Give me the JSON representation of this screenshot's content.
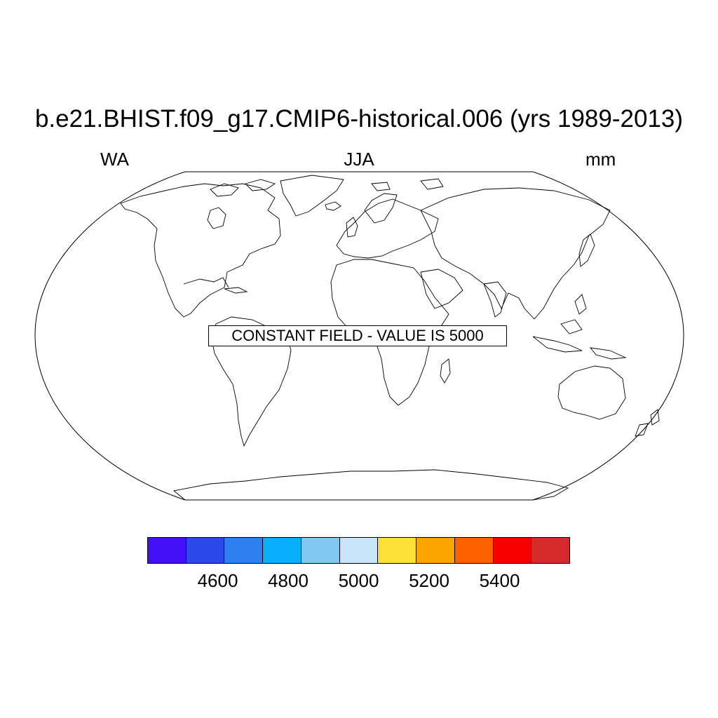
{
  "title": "b.e21.BHIST.f09_g17.CMIP6-historical.006 (yrs 1989-2013)",
  "subtitle_left": "WA",
  "subtitle_center": "JJA",
  "subtitle_right": "mm",
  "notice": "CONSTANT FIELD - VALUE IS 5000",
  "map": {
    "projection": "Robinson",
    "features": [
      "coastlines"
    ]
  },
  "colorbar": {
    "colors": [
      "#4410f8",
      "#2c48e8",
      "#2c80f0",
      "#08b0fc",
      "#80c8f0",
      "#c8e4f8",
      "#fce038",
      "#fca400",
      "#fc6000",
      "#f80000",
      "#d42a2a"
    ],
    "tick_values": [
      4600,
      4800,
      5000,
      5200,
      5400
    ],
    "tick_labels": [
      "4600",
      "4800",
      "5000",
      "5200",
      "5400"
    ],
    "min": 4400,
    "max": 5600
  }
}
